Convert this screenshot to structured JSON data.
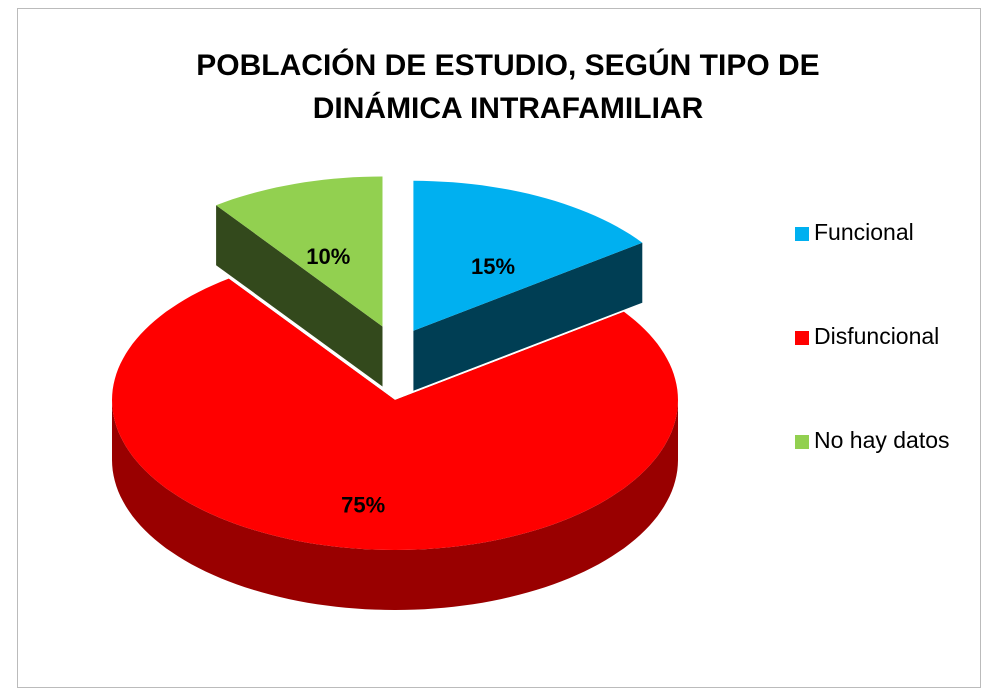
{
  "chart_data": {
    "type": "pie3d",
    "title": "POBLACIÓN DE ESTUDIO, SEGÚN TIPO DE DINÁMICA INTRAFAMILIAR",
    "categories": [
      "Funcional",
      "Disfuncional",
      "No hay datos"
    ],
    "values": [
      15,
      75,
      10
    ],
    "value_labels": [
      "15%",
      "75%",
      "10%"
    ],
    "colors": [
      "#00b0f0",
      "#ff0000",
      "#92d050"
    ],
    "legend": "right"
  }
}
